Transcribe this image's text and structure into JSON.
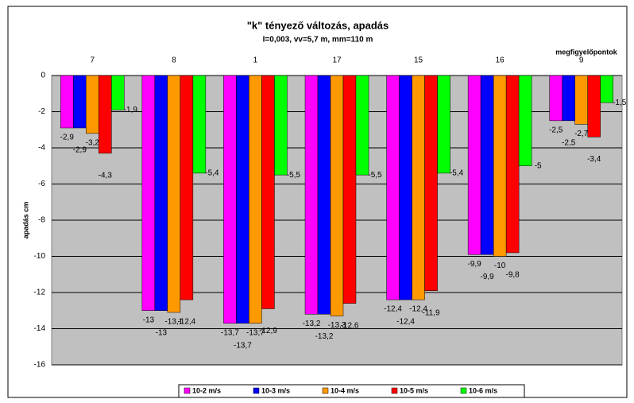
{
  "chart_data": {
    "type": "bar",
    "title": "\"k\" tényező változás, apadás",
    "subtitle": "I=0,003,  vv=5,7 m,  mm=110 m",
    "x_label": "megfigyelőpontok",
    "y_label": "apadás cm",
    "categories": [
      "7",
      "8",
      "1",
      "17",
      "15",
      "16",
      "9"
    ],
    "series": [
      {
        "name": "10-2 m/s",
        "color": "#ff00ff",
        "values": [
          -2.9,
          -13,
          -13.7,
          -13.2,
          -12.4,
          -9.9,
          -2.5
        ],
        "value_labels": [
          "-2,9",
          "-13",
          "-13,7",
          "-13,2",
          "-12,4",
          "-9,9",
          "-2,5"
        ]
      },
      {
        "name": "10-3 m/s",
        "color": "#0000ff",
        "values": [
          -2.9,
          -13,
          -13.7,
          -13.2,
          -12.4,
          -9.9,
          -2.5
        ],
        "value_labels": [
          "-2,9",
          "-13",
          "-13,7",
          "-13,2",
          "-12,4",
          "-9,9",
          "-2,5"
        ]
      },
      {
        "name": "10-4 m/s",
        "color": "#ff9900",
        "values": [
          -3.2,
          -13.1,
          -13.7,
          -13.3,
          -12.4,
          -10,
          -2.7
        ],
        "value_labels": [
          "-3,2",
          "-13,1",
          "-13,7",
          "-13,3",
          "-12,4",
          "-10",
          "-2,7"
        ]
      },
      {
        "name": "10-5 m/s",
        "color": "#ff0000",
        "values": [
          -4.3,
          -12.4,
          -12.9,
          -12.6,
          -11.9,
          -9.8,
          -3.4
        ],
        "value_labels": [
          "-4,3",
          "-12,4",
          "-12,9",
          "-12,6",
          "-11,9",
          "-9,8",
          "-3,4"
        ]
      },
      {
        "name": "10-6 m/s",
        "color": "#00ff00",
        "values": [
          -1.9,
          -5.4,
          -5.5,
          -5.5,
          -5.4,
          -5,
          -1.5
        ],
        "value_labels": [
          "-1,9",
          "-5,4",
          "-5,5",
          "-5,5",
          "-5,4",
          "-5",
          "-1,5"
        ]
      }
    ],
    "ylim": [
      -16,
      0
    ],
    "yticks": [
      0,
      -2,
      -4,
      -6,
      -8,
      -10,
      -12,
      -14,
      -16
    ],
    "grid": true,
    "legend": "bottom"
  }
}
